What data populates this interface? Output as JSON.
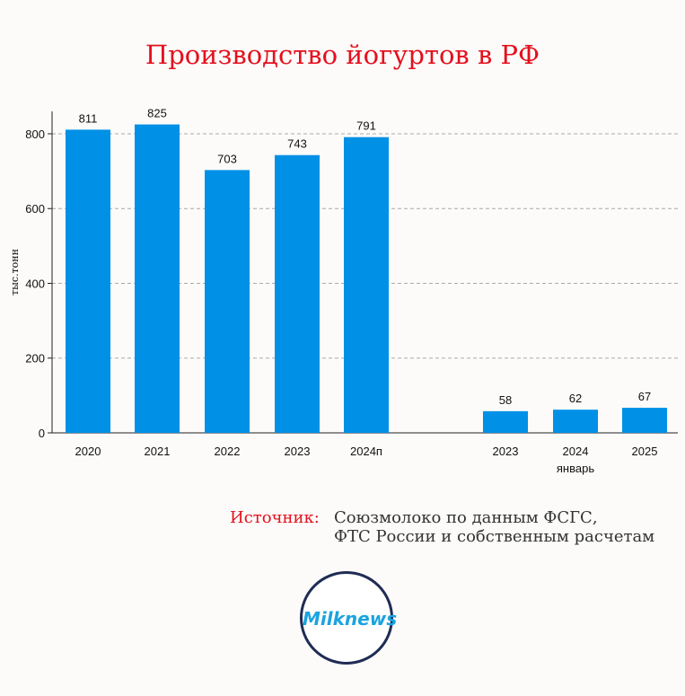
{
  "title": "Производство йогуртов в РФ",
  "chart_data": {
    "type": "bar",
    "title": "Производство йогуртов в РФ",
    "ylabel": "тыс.тонн",
    "xlabel": "",
    "ylim": [
      0,
      860
    ],
    "yticks": [
      0,
      200,
      400,
      600,
      800
    ],
    "grid": true,
    "bar_color": "#0090e6",
    "categories": [
      "2020",
      "2021",
      "2022",
      "2023",
      "2024п",
      "2023",
      "2024",
      "2025"
    ],
    "values": [
      811,
      825,
      703,
      743,
      791,
      58,
      62,
      67
    ],
    "group_label": "январь"
  },
  "source": {
    "label": "Источник:",
    "line1": "Союзмолоко по данным ФСГС,",
    "line2": "ФТС России и собственным расчетам"
  },
  "logo": {
    "text": "Milknews",
    "ring_color": "#1f2c55",
    "text_color": "#1aa3e0"
  }
}
